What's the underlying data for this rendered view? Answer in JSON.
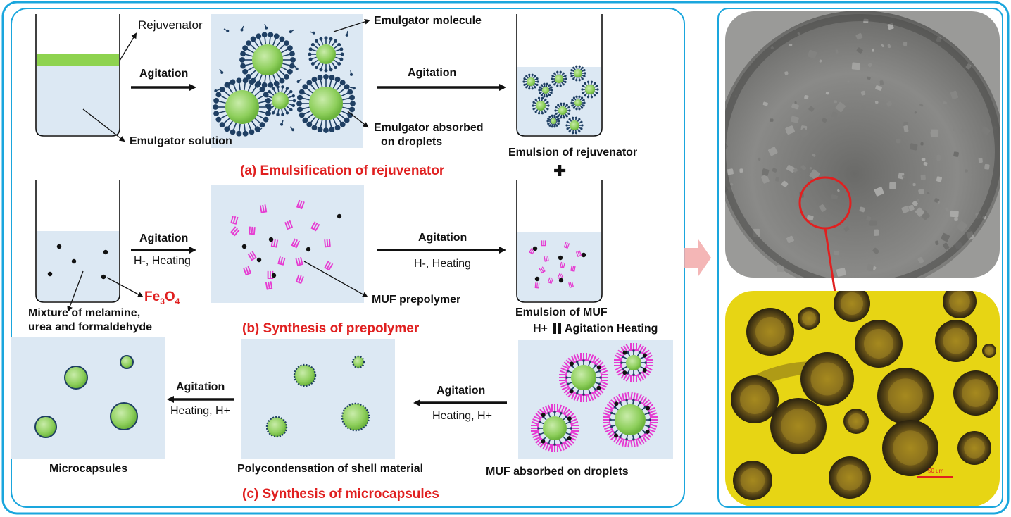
{
  "colors": {
    "frame": "#1aa6dd",
    "panel_bg": "#dce8f3",
    "droplet": "#8ecf5c",
    "emulgator": "#1f3f63",
    "prepolymer": "#e63bd1",
    "caption_red": "#e02020",
    "photo_mixture": "#7a7a78",
    "photo_microscope": "#e7d514"
  },
  "row_a": {
    "label_rejuvenator": "Rejuvenator",
    "label_emulgator_solution": "Emulgator solution",
    "label_agitation_1": "Agitation",
    "label_emulgator_molecule": "Emulgator molecule",
    "label_agitation_2": "Agitation",
    "label_absorbed_line1": "Emulgator absorbed",
    "label_absorbed_line2": "on droplets",
    "label_emulsion_rejuvenator": "Emulsion of rejuvenator",
    "plus": "✚",
    "caption": "(a) Emulsification of rejuvenator"
  },
  "row_b": {
    "label_agitation_1": "Agitation",
    "label_condition_1": "H-, Heating",
    "label_fe3o4_base": "Fe",
    "label_fe3o4_sub1": "3",
    "label_fe3o4_mid": "O",
    "label_fe3o4_sub2": "4",
    "label_mixture_line1": "Mixture of melamine,",
    "label_mixture_line2": "urea and formaldehyde",
    "label_muf_prepolymer": "MUF prepolymer",
    "label_agitation_2": "Agitation",
    "label_condition_2": "H-, Heating",
    "label_emulsion_muf": "Emulsion of MUF",
    "label_down_left": "H+",
    "label_down_right": "Agitation Heating",
    "caption": "(b) Synthesis of prepolymer"
  },
  "row_c": {
    "label_agitation_right": "Agitation",
    "label_condition_right": "Heating, H+",
    "label_agitation_left": "Agitation",
    "label_condition_left": "Heating, H+",
    "label_microcapsules": "Microcapsules",
    "label_polycondensation": "Polycondensation of shell material",
    "label_muf_absorbed": "MUF absorbed on droplets",
    "caption": "(c) Synthesis of microcapsules"
  },
  "photos": {
    "scale_bar": "50 um"
  }
}
